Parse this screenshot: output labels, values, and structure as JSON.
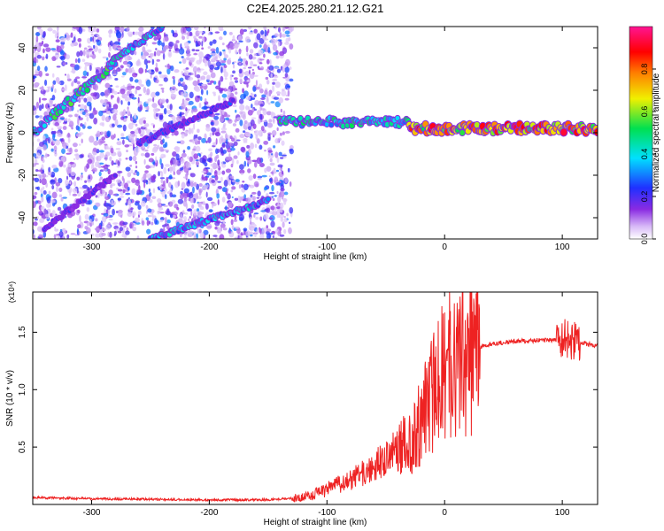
{
  "title": "C2E4.2025.280.21.12.G21",
  "colors": {
    "snr_line": "#ee2222",
    "colormap": [
      "#ffffff",
      "#c9a6f5",
      "#8a2be2",
      "#2020ff",
      "#00e0ff",
      "#00e060",
      "#f0f000",
      "#ff8000",
      "#ff0000",
      "#ff1493"
    ]
  },
  "chart_data": [
    {
      "type": "heatmap",
      "xlabel": "Height of straight line (km)",
      "ylabel": "Frequency (Hz)",
      "xlim": [
        -350,
        130
      ],
      "ylim": [
        -50,
        50
      ],
      "xticks": [
        -300,
        -200,
        -100,
        0,
        100
      ],
      "yticks": [
        -40,
        -20,
        0,
        20,
        40
      ],
      "colorbar": {
        "label": "Normalized spectral amplitude",
        "range": [
          0,
          1
        ],
        "ticks": [
          "0.0",
          "0.2",
          "0.4",
          "0.6",
          "0.8"
        ]
      },
      "features": [
        {
          "x": [
            -350,
            -280
          ],
          "y": [
            0,
            33
          ],
          "peak": 0.6
        },
        {
          "x": [
            -285,
            -240
          ],
          "y": [
            33,
            50
          ],
          "peak": 0.5
        },
        {
          "x": [
            -260,
            -180
          ],
          "y": [
            -5,
            15
          ],
          "peak": 0.3
        },
        {
          "x": [
            -340,
            -280
          ],
          "y": [
            -45,
            -20
          ],
          "peak": 0.25
        },
        {
          "x": [
            -250,
            -150
          ],
          "y": [
            -50,
            -32
          ],
          "peak": 0.45
        },
        {
          "x": [
            -140,
            -30
          ],
          "y": [
            5,
            5
          ],
          "peak": 0.55
        },
        {
          "x": [
            -30,
            130
          ],
          "y": [
            2,
            2
          ],
          "peak": 0.95
        }
      ]
    },
    {
      "type": "line",
      "xlabel": "Height of straight line (km)",
      "ylabel": "SNR (10 * v/v)",
      "y_multiplier": "(x10⁴)",
      "xlim": [
        -350,
        130
      ],
      "ylim": [
        0,
        1.85
      ],
      "xticks": [
        -300,
        -200,
        -100,
        0,
        100
      ],
      "yticks": [
        "0.5",
        "1.0",
        "1.5"
      ],
      "series": [
        {
          "x": [
            -350,
            -300,
            -250,
            -200,
            -150,
            -120,
            -100,
            -80,
            -60,
            -40,
            -20,
            -10,
            0,
            20,
            40,
            60,
            80,
            90,
            100,
            110,
            120,
            130
          ],
          "y": [
            0.06,
            0.05,
            0.045,
            0.04,
            0.04,
            0.06,
            0.13,
            0.22,
            0.33,
            0.48,
            0.7,
            0.95,
            1.15,
            1.33,
            1.4,
            1.42,
            1.43,
            1.43,
            1.44,
            1.42,
            1.4,
            1.38
          ]
        }
      ]
    }
  ]
}
